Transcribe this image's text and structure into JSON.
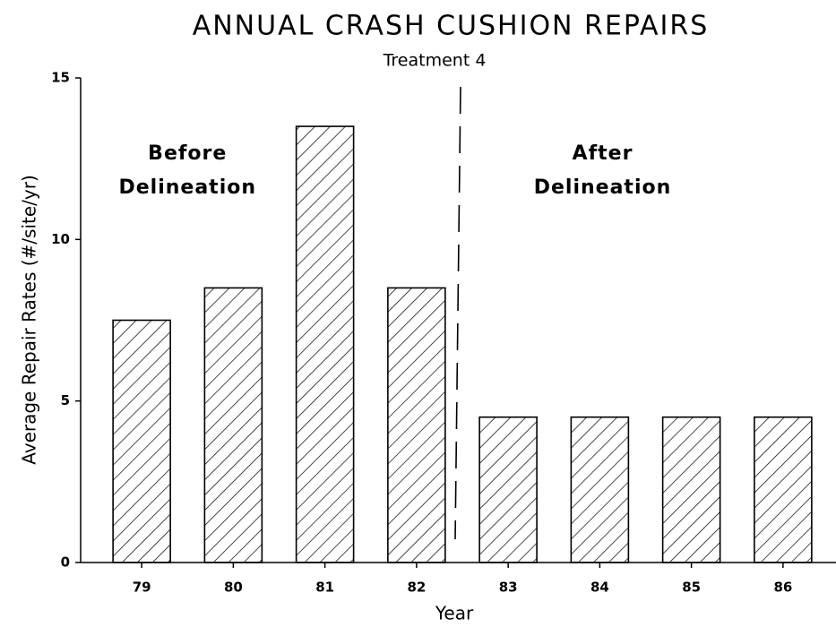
{
  "chart_data": {
    "type": "bar",
    "title": "ANNUAL CRASH CUSHION REPAIRS",
    "subtitle": "Treatment 4",
    "x_label": "Year",
    "y_label": "Average Repair Rates (#/site/yr)",
    "categories": [
      "79",
      "80",
      "81",
      "82",
      "83",
      "84",
      "85",
      "86"
    ],
    "values": [
      7.5,
      8.5,
      13.5,
      8.5,
      4.5,
      4.5,
      4.5,
      4.5
    ],
    "color": "#000000",
    "ylim": [
      0,
      15
    ],
    "yticks": [
      0,
      5,
      10,
      15
    ],
    "annotations": [
      [
        "Before",
        "Delineation"
      ],
      [
        "After",
        "Delineation"
      ]
    ]
  }
}
